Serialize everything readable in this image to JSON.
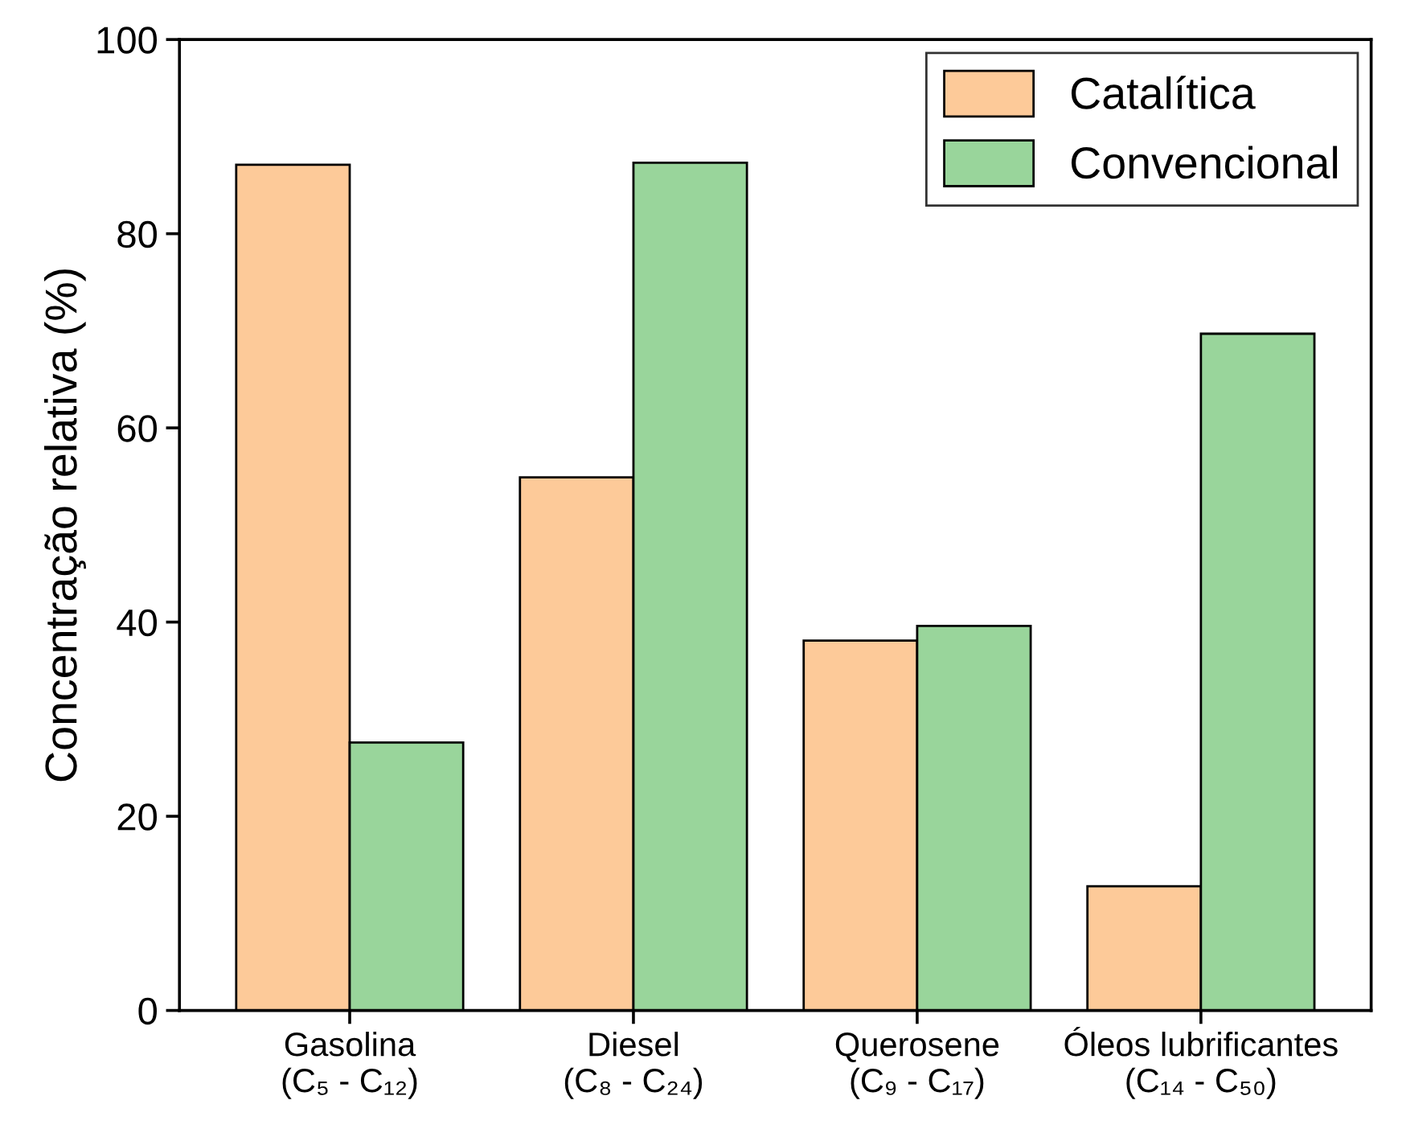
{
  "chart_data": {
    "type": "bar",
    "ylabel": "Concentração relativa (%)",
    "categories": [
      "Gasolina\n(C₅ - C₁₂)",
      "Diesel\n(C₈ - C₂₄)",
      "Querosene\n(C₉ - C₁₇)",
      "Óleos lubrificantes\n(C₁₄ - C₅₀)"
    ],
    "series": [
      {
        "name": "Catalítica",
        "color": "#fdca99",
        "values": [
          87.1,
          54.9,
          38.1,
          12.8
        ]
      },
      {
        "name": "Convencional",
        "color": "#99d59b",
        "values": [
          27.6,
          87.3,
          39.6,
          69.7
        ]
      }
    ],
    "ylim": [
      0,
      100
    ],
    "yticks": [
      0,
      20,
      40,
      60,
      80,
      100
    ],
    "grid": false,
    "legend": "top right"
  }
}
